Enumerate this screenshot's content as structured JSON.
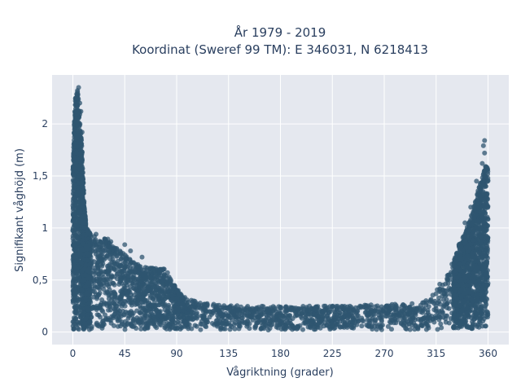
{
  "chart_data": {
    "type": "scatter",
    "title_line1": "År 1979 - 2019",
    "title_line2": "Koordinat (Sweref 99 TM): E 346031, N 6218413",
    "xlabel": "Vågriktning (grader)",
    "ylabel": "Signifikant våghöjd (m)",
    "xlim": [
      -18,
      378
    ],
    "ylim": [
      -0.12,
      2.47
    ],
    "xticks": [
      0,
      45,
      90,
      135,
      180,
      225,
      270,
      315,
      360
    ],
    "xtick_labels": [
      "0",
      "45",
      "90",
      "135",
      "180",
      "225",
      "270",
      "315",
      "360"
    ],
    "yticks": [
      0,
      0.5,
      1,
      1.5,
      2
    ],
    "ytick_labels": [
      "0",
      "0,5",
      "1",
      "1,5",
      "2"
    ],
    "grid": true,
    "background": "#e5e8ef",
    "gridcolor": "#ffffff",
    "marker_color": "#2f5670",
    "envelope": {
      "x": [
        0,
        2,
        4,
        6,
        8,
        10,
        12,
        15,
        20,
        25,
        30,
        35,
        40,
        45,
        50,
        55,
        60,
        65,
        70,
        75,
        80,
        85,
        90,
        95,
        100,
        105,
        110,
        120,
        135,
        150,
        180,
        210,
        240,
        270,
        290,
        300,
        305,
        310,
        315,
        320,
        325,
        330,
        335,
        340,
        345,
        350,
        355,
        358,
        360
      ],
      "y": [
        1.6,
        2.25,
        2.35,
        2.1,
        1.75,
        1.2,
        1.0,
        0.95,
        0.95,
        0.9,
        0.9,
        0.85,
        0.8,
        0.75,
        0.7,
        0.65,
        0.65,
        0.62,
        0.62,
        0.6,
        0.62,
        0.5,
        0.42,
        0.35,
        0.32,
        0.3,
        0.28,
        0.27,
        0.26,
        0.25,
        0.25,
        0.25,
        0.25,
        0.27,
        0.27,
        0.28,
        0.3,
        0.33,
        0.4,
        0.5,
        0.6,
        0.68,
        0.85,
        0.95,
        1.1,
        1.3,
        1.5,
        1.6,
        1.58
      ]
    },
    "outliers": [
      {
        "x": 5,
        "y": 2.35
      },
      {
        "x": 4,
        "y": 2.32
      },
      {
        "x": 6,
        "y": 2.2
      },
      {
        "x": 7,
        "y": 2.12
      },
      {
        "x": 3,
        "y": 2.05
      },
      {
        "x": 8,
        "y": 1.92
      },
      {
        "x": 45,
        "y": 0.84
      },
      {
        "x": 50,
        "y": 0.78
      },
      {
        "x": 60,
        "y": 0.72
      },
      {
        "x": 357,
        "y": 1.84
      },
      {
        "x": 356,
        "y": 1.79
      },
      {
        "x": 357,
        "y": 1.72
      },
      {
        "x": 355,
        "y": 1.62
      },
      {
        "x": 350,
        "y": 1.45
      },
      {
        "x": 345,
        "y": 1.2
      },
      {
        "x": 340,
        "y": 1.05
      }
    ]
  }
}
